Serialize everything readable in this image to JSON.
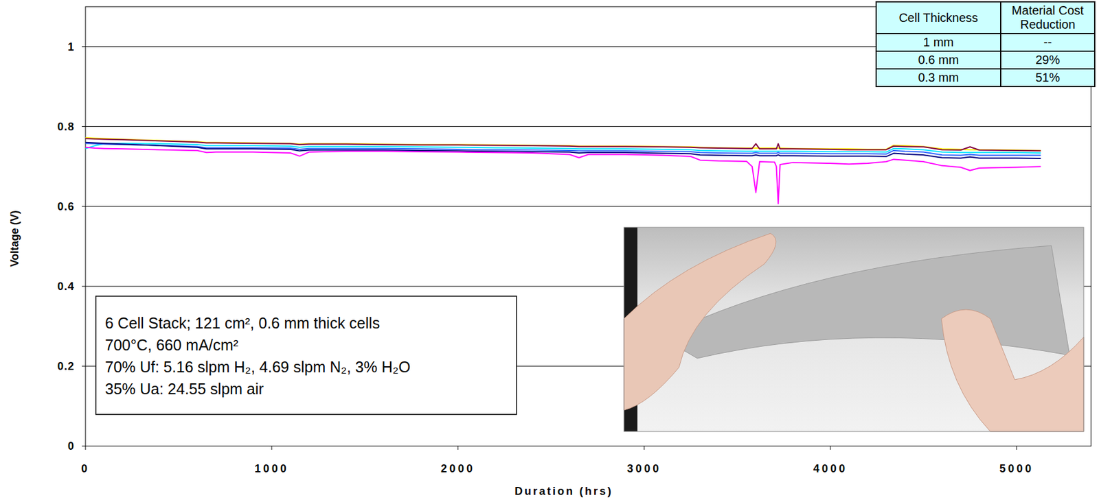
{
  "chart_data": {
    "type": "line",
    "x_label": "Duration (hrs)",
    "y_label": "Voltage (V)",
    "annotation": [
      "6 Cell Stack; 121 cm², 0.6 mm thick cells",
      "700°C, 660 mA/cm²",
      "70% Uf: 5.16 slpm H₂, 4.69 slpm N₂, 3% H₂O",
      "35% Ua: 24.55 slpm air"
    ],
    "xlim": [
      0,
      5400
    ],
    "xticks": [
      0,
      1000,
      2000,
      3000,
      4000,
      5000
    ],
    "ylim": [
      0,
      1.1
    ],
    "yticks": [
      0,
      0.2,
      0.4,
      0.6,
      0.8,
      1
    ],
    "grid": true,
    "x": [
      0,
      50,
      100,
      200,
      400,
      600,
      650,
      700,
      900,
      1100,
      1150,
      1200,
      1400,
      1600,
      1800,
      2000,
      2200,
      2400,
      2600,
      2650,
      2700,
      2900,
      3100,
      3250,
      3300,
      3400,
      3550,
      3580,
      3600,
      3620,
      3700,
      3710,
      3720,
      3730,
      3800,
      4000,
      4100,
      4200,
      4300,
      4340,
      4400,
      4500,
      4600,
      4700,
      4750,
      4800,
      5000,
      5130
    ],
    "series": [
      {
        "color": "#ffee00",
        "values": [
          0.772,
          0.771,
          0.77,
          0.768,
          0.765,
          0.762,
          0.76,
          0.76,
          0.759,
          0.758,
          0.756,
          0.757,
          0.757,
          0.756,
          0.755,
          0.755,
          0.754,
          0.753,
          0.752,
          0.751,
          0.751,
          0.751,
          0.75,
          0.749,
          0.748,
          0.747,
          0.746,
          0.746,
          0.746,
          0.746,
          0.746,
          0.746,
          0.746,
          0.746,
          0.745,
          0.744,
          0.744,
          0.743,
          0.743,
          0.753,
          0.752,
          0.75,
          0.744,
          0.743,
          0.742,
          0.742,
          0.741,
          0.74
        ]
      },
      {
        "color": "#800040",
        "values": [
          0.77,
          0.769,
          0.768,
          0.767,
          0.764,
          0.761,
          0.759,
          0.759,
          0.758,
          0.757,
          0.755,
          0.756,
          0.756,
          0.755,
          0.754,
          0.754,
          0.753,
          0.752,
          0.751,
          0.75,
          0.75,
          0.75,
          0.749,
          0.748,
          0.747,
          0.746,
          0.745,
          0.745,
          0.757,
          0.744,
          0.744,
          0.744,
          0.757,
          0.744,
          0.744,
          0.743,
          0.742,
          0.742,
          0.742,
          0.751,
          0.75,
          0.749,
          0.742,
          0.741,
          0.749,
          0.741,
          0.74,
          0.739
        ]
      },
      {
        "color": "#00e5ff",
        "values": [
          0.745,
          0.752,
          0.757,
          0.758,
          0.757,
          0.755,
          0.752,
          0.752,
          0.752,
          0.751,
          0.748,
          0.75,
          0.75,
          0.75,
          0.749,
          0.748,
          0.747,
          0.746,
          0.745,
          0.744,
          0.744,
          0.744,
          0.743,
          0.742,
          0.74,
          0.739,
          0.738,
          0.738,
          0.738,
          0.738,
          0.738,
          0.738,
          0.738,
          0.738,
          0.738,
          0.737,
          0.737,
          0.737,
          0.736,
          0.745,
          0.744,
          0.742,
          0.736,
          0.735,
          0.735,
          0.735,
          0.735,
          0.734
        ]
      },
      {
        "color": "#3366ff",
        "values": [
          0.758,
          0.757,
          0.756,
          0.755,
          0.753,
          0.75,
          0.747,
          0.747,
          0.747,
          0.746,
          0.743,
          0.745,
          0.745,
          0.745,
          0.744,
          0.743,
          0.742,
          0.741,
          0.74,
          0.739,
          0.739,
          0.739,
          0.738,
          0.737,
          0.735,
          0.734,
          0.733,
          0.733,
          0.735,
          0.733,
          0.733,
          0.733,
          0.735,
          0.733,
          0.733,
          0.732,
          0.732,
          0.732,
          0.731,
          0.74,
          0.738,
          0.736,
          0.729,
          0.728,
          0.73,
          0.728,
          0.728,
          0.728
        ]
      },
      {
        "color": "#000080",
        "values": [
          0.76,
          0.759,
          0.758,
          0.756,
          0.752,
          0.748,
          0.744,
          0.744,
          0.744,
          0.743,
          0.739,
          0.741,
          0.741,
          0.741,
          0.74,
          0.739,
          0.738,
          0.737,
          0.736,
          0.734,
          0.735,
          0.735,
          0.733,
          0.732,
          0.729,
          0.728,
          0.727,
          0.727,
          0.729,
          0.727,
          0.727,
          0.727,
          0.729,
          0.727,
          0.727,
          0.726,
          0.726,
          0.726,
          0.725,
          0.733,
          0.731,
          0.729,
          0.722,
          0.721,
          0.724,
          0.721,
          0.721,
          0.72
        ]
      },
      {
        "color": "#ff00ff",
        "values": [
          0.748,
          0.746,
          0.745,
          0.744,
          0.742,
          0.74,
          0.735,
          0.736,
          0.736,
          0.734,
          0.726,
          0.736,
          0.738,
          0.738,
          0.737,
          0.736,
          0.735,
          0.734,
          0.73,
          0.722,
          0.73,
          0.73,
          0.728,
          0.725,
          0.716,
          0.714,
          0.713,
          0.7,
          0.635,
          0.712,
          0.711,
          0.7,
          0.607,
          0.705,
          0.71,
          0.708,
          0.706,
          0.708,
          0.712,
          0.718,
          0.716,
          0.712,
          0.702,
          0.698,
          0.69,
          0.696,
          0.698,
          0.7
        ]
      }
    ]
  },
  "table": {
    "header": [
      "Cell Thickness",
      "Material Cost Reduction"
    ],
    "rows": [
      [
        "1 mm",
        "--"
      ],
      [
        "0.6 mm",
        "29%"
      ],
      [
        "0.3 mm",
        "51%"
      ]
    ]
  }
}
